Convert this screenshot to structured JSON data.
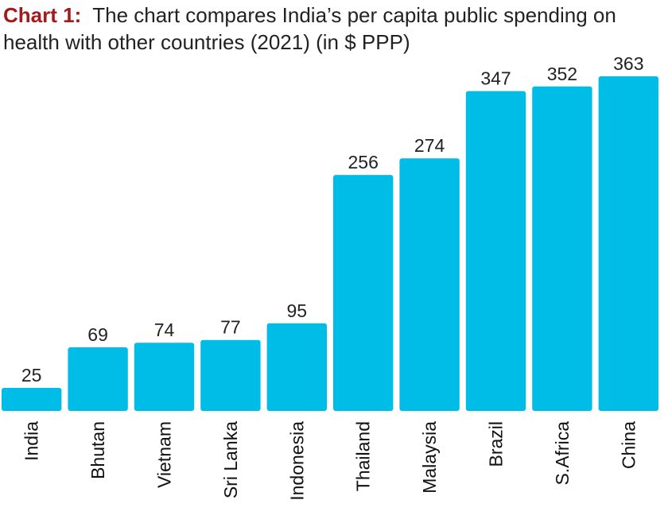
{
  "title": {
    "label": "Chart 1:",
    "text": "The chart compares India’s per capita public spending on health with other countries (2021) (in $ PPP)"
  },
  "colors": {
    "bar": "#00bde8",
    "label_accent": "#a3191c"
  },
  "chart_data": {
    "type": "bar",
    "title": "The chart compares India’s per capita public spending on health with other countries (2021) (in $ PPP)",
    "categories": [
      "India",
      "Bhutan",
      "Vietnam",
      "Sri Lanka",
      "Indonesia",
      "Thailand",
      "Malaysia",
      "Brazil",
      "S.Africa",
      "China"
    ],
    "values": [
      25,
      69,
      74,
      77,
      95,
      256,
      274,
      347,
      352,
      363
    ],
    "data_labels": true,
    "xlabel": "",
    "ylabel": "",
    "ylim": [
      0,
      363
    ],
    "grid": false,
    "legend": "none"
  }
}
